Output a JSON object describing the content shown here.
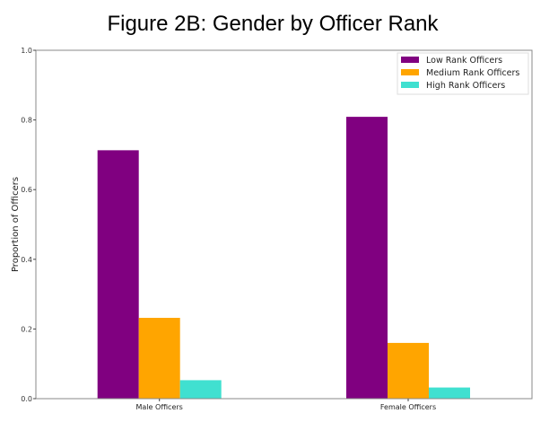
{
  "chart_data": {
    "type": "bar",
    "title": "Figure 2B: Gender by Officer Rank",
    "xlabel": "",
    "ylabel": "Proportion of Officers",
    "categories": [
      "Male Officers",
      "Female Officers"
    ],
    "series": [
      {
        "name": "Low Rank Officers",
        "color": "#800080",
        "values": [
          0.713,
          0.809
        ]
      },
      {
        "name": "Medium Rank Officers",
        "color": "#FFA500",
        "values": [
          0.232,
          0.16
        ]
      },
      {
        "name": "High Rank Officers",
        "color": "#40E0D0",
        "values": [
          0.053,
          0.032
        ]
      }
    ],
    "ylim": [
      0,
      1.0
    ],
    "yticks": [
      "0.0",
      "0.2",
      "0.4",
      "0.6",
      "0.8",
      "1.0"
    ],
    "grid": false,
    "legend_position": "top-right"
  }
}
